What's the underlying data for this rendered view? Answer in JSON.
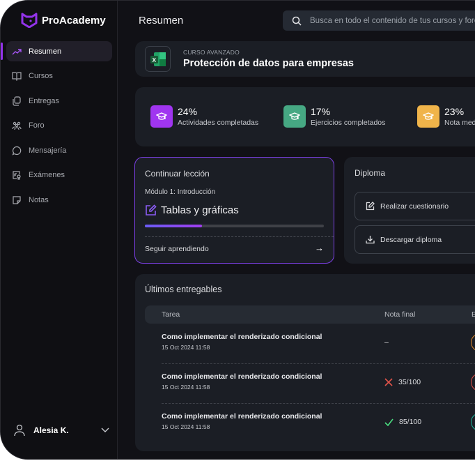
{
  "brand": {
    "name": "ProAcademy",
    "color": "#9333ea"
  },
  "sidebar": {
    "items": [
      {
        "label": "Resumen",
        "icon": "trending-up-icon",
        "active": true
      },
      {
        "label": "Cursos",
        "icon": "book-open-icon"
      },
      {
        "label": "Entregas",
        "icon": "copy-icon"
      },
      {
        "label": "Foro",
        "icon": "users-icon"
      },
      {
        "label": "Mensajería",
        "icon": "message-circle-icon"
      },
      {
        "label": "Exámenes",
        "icon": "exam-icon"
      },
      {
        "label": "Notas",
        "icon": "sticky-note-icon"
      }
    ],
    "user": {
      "name": "Alesia K."
    }
  },
  "header": {
    "title": "Resumen",
    "search_placeholder": "Busca en todo el contenido de tus cursos y foros"
  },
  "course": {
    "kicker": "CURSO AVANZADO",
    "name": "Protección de datos para empresas",
    "icon": "excel-icon"
  },
  "stats": [
    {
      "value": "24%",
      "label": "Actividades completadas",
      "color": "#a035f0"
    },
    {
      "value": "17%",
      "label": "Ejercicios completados",
      "color": "#46a883"
    },
    {
      "value": "23%",
      "label": "Nota media",
      "color": "#f0b44a"
    }
  ],
  "lesson": {
    "heading": "Continuar lección",
    "module": "Módulo 1: Introducción",
    "title": "Tablas y gráficas",
    "progress_percent": 32,
    "cta": "Seguir aprendiendo"
  },
  "diploma": {
    "heading": "Diploma",
    "buttons": [
      "Realizar cuestionario",
      "Descargar diploma"
    ]
  },
  "deliverables": {
    "heading": "Últimos entregables",
    "columns": [
      "Tarea",
      "Nota final",
      "E"
    ],
    "rows": [
      {
        "task": "Como implementar el renderizado condicional",
        "date": "15 Oct 2024 11:58",
        "grade": "–",
        "result": "none",
        "status_color": "#e08a2e"
      },
      {
        "task": "Como implementar el renderizado condicional",
        "date": "15 Oct 2024 11:58",
        "grade": "35/100",
        "result": "fail",
        "status_color": "#e0534a"
      },
      {
        "task": "Como implementar el renderizado condicional",
        "date": "15 Oct 2024 11:58",
        "grade": "85/100",
        "result": "pass",
        "status_color": "#1fb59a"
      }
    ]
  }
}
